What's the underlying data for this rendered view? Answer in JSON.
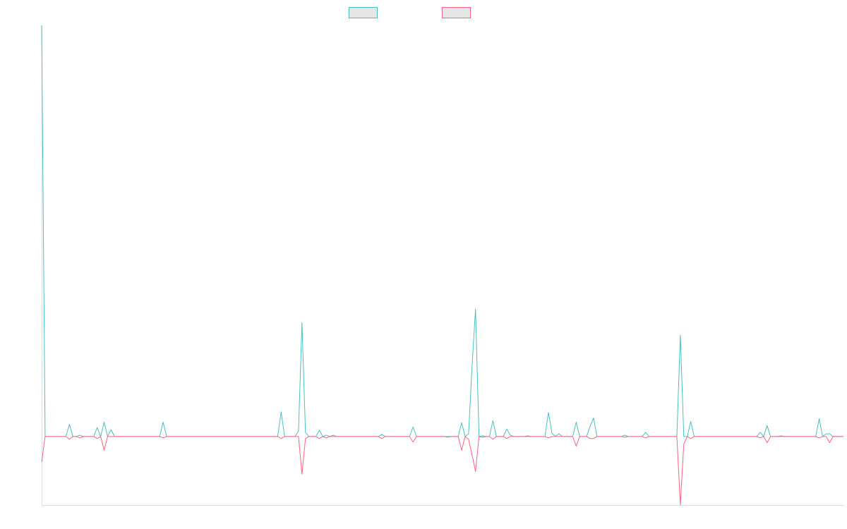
{
  "chart_data": {
    "type": "line",
    "categories": [
      null,
      null,
      null,
      null,
      null,
      null,
      null,
      null,
      null,
      null,
      null,
      null,
      null,
      null,
      null,
      null,
      null,
      null,
      null,
      null,
      null,
      null,
      null,
      null,
      null,
      null,
      null,
      null,
      null,
      null,
      null,
      null,
      null,
      null,
      null,
      null,
      null,
      null,
      null,
      null,
      null,
      null,
      null,
      null,
      null,
      null,
      null,
      null,
      null,
      null,
      null,
      null,
      null,
      null,
      null,
      null,
      null,
      null,
      null,
      null,
      null,
      null,
      null,
      null,
      null,
      null,
      null,
      null,
      null,
      null,
      null,
      null,
      null,
      null,
      null,
      null,
      null,
      null,
      null,
      null,
      null,
      null,
      null,
      null,
      null,
      null,
      null,
      null,
      null,
      null,
      null,
      null,
      null,
      null,
      null,
      null,
      null,
      null,
      null,
      null,
      null,
      null,
      null,
      null,
      null,
      null,
      null,
      null,
      null,
      null,
      null,
      null,
      null,
      null,
      null,
      null,
      null,
      null,
      null,
      null,
      null,
      null,
      null,
      null,
      null,
      null,
      null,
      null,
      null,
      null,
      null,
      null,
      null,
      null,
      null,
      null,
      null,
      null,
      null,
      null,
      null,
      null,
      null,
      null,
      null,
      null,
      null,
      null,
      null,
      null,
      null,
      null,
      null,
      null,
      null,
      null,
      null,
      null,
      null,
      null,
      null,
      null,
      null,
      null,
      null,
      null,
      null,
      null,
      null,
      null,
      null,
      null,
      null,
      null,
      null,
      null,
      null,
      null,
      null,
      null,
      null,
      null,
      null,
      null,
      null,
      null,
      null,
      null,
      null,
      null,
      null,
      null,
      null,
      null,
      null,
      null,
      null,
      null,
      null,
      null,
      null,
      null,
      null,
      null,
      null,
      null,
      null,
      null,
      null,
      null,
      null,
      null,
      null,
      null,
      null,
      null,
      null,
      null,
      null,
      null,
      null,
      null,
      null,
      null,
      null,
      null,
      null,
      null,
      null,
      null,
      null,
      null
    ],
    "series": [
      {
        "color": "#4bc0c0",
        "values": [
          600,
          0,
          0,
          0,
          0,
          0,
          0,
          0,
          18,
          0,
          0,
          2,
          0,
          0,
          0,
          0,
          13,
          0,
          21,
          0,
          10,
          0,
          0,
          0,
          0,
          0,
          0,
          0,
          0,
          0,
          0,
          0,
          0,
          0,
          0,
          21,
          0,
          0,
          0,
          0,
          0,
          0,
          0,
          0,
          0,
          0,
          0,
          0,
          0,
          0,
          0,
          0,
          0,
          0,
          0,
          0,
          0,
          0,
          0,
          0,
          0,
          0,
          0,
          0,
          0,
          0,
          0,
          0,
          0,
          36,
          0,
          0,
          0,
          0,
          8,
          166,
          6,
          0,
          0,
          0,
          9,
          0,
          2,
          0,
          2,
          0,
          0,
          0,
          0,
          0,
          0,
          0,
          0,
          0,
          0,
          0,
          0,
          0,
          3,
          0,
          0,
          0,
          0,
          0,
          0,
          0,
          0,
          14,
          0,
          0,
          0,
          0,
          0,
          0,
          0,
          0,
          0,
          0,
          0,
          0,
          0,
          20,
          0,
          4,
          103,
          186,
          0,
          1,
          0,
          0,
          23,
          0,
          0,
          0,
          11,
          2,
          0,
          0,
          0,
          0,
          1,
          0,
          0,
          0,
          0,
          0,
          35,
          5,
          0,
          4,
          0,
          0,
          0,
          0,
          21,
          0,
          0,
          0,
          15,
          27,
          0,
          0,
          0,
          0,
          0,
          0,
          0,
          0,
          2,
          0,
          0,
          0,
          0,
          0,
          6,
          0,
          0,
          0,
          0,
          0,
          0,
          0,
          0,
          0,
          148,
          0,
          0,
          22,
          0,
          0,
          0,
          0,
          0,
          0,
          0,
          0,
          0,
          0,
          0,
          0,
          0,
          0,
          0,
          0,
          0,
          0,
          0,
          6,
          0,
          16,
          0,
          0,
          0,
          1,
          0,
          0,
          0,
          0,
          0,
          0,
          0,
          0,
          0,
          0,
          26,
          0,
          4,
          4,
          0,
          0,
          0,
          0
        ]
      },
      {
        "color": "#ff6384",
        "values": [
          -37,
          0,
          0,
          0,
          0,
          0,
          0,
          0,
          -4,
          0,
          0,
          -2,
          0,
          0,
          0,
          0,
          -3,
          0,
          -20,
          0,
          0,
          0,
          0,
          0,
          0,
          0,
          0,
          0,
          0,
          0,
          0,
          0,
          0,
          0,
          0,
          -2,
          0,
          0,
          0,
          0,
          0,
          0,
          0,
          0,
          0,
          0,
          0,
          0,
          0,
          0,
          0,
          0,
          0,
          0,
          0,
          0,
          0,
          0,
          0,
          0,
          0,
          0,
          0,
          0,
          0,
          0,
          0,
          0,
          0,
          -3,
          0,
          0,
          0,
          0,
          0,
          -55,
          -3,
          0,
          0,
          0,
          -3,
          0,
          -2,
          0,
          0,
          0,
          0,
          0,
          0,
          0,
          0,
          0,
          0,
          0,
          0,
          0,
          0,
          0,
          -3,
          0,
          0,
          0,
          0,
          0,
          0,
          0,
          0,
          -8,
          0,
          0,
          0,
          0,
          0,
          0,
          0,
          0,
          0,
          -1,
          0,
          0,
          0,
          -20,
          0,
          -4,
          -27,
          -51,
          0,
          -1,
          0,
          0,
          -4,
          0,
          0,
          0,
          -3,
          0,
          0,
          0,
          0,
          0,
          0,
          0,
          0,
          0,
          0,
          0,
          -2,
          0,
          0,
          0,
          0,
          0,
          0,
          0,
          -14,
          0,
          0,
          0,
          -3,
          -3,
          0,
          0,
          0,
          0,
          0,
          0,
          0,
          0,
          -1,
          0,
          0,
          0,
          0,
          0,
          -2,
          0,
          0,
          0,
          0,
          0,
          0,
          0,
          0,
          0,
          -100,
          -11,
          0,
          -3,
          0,
          0,
          0,
          0,
          0,
          0,
          0,
          0,
          0,
          0,
          0,
          0,
          0,
          0,
          0,
          0,
          0,
          0,
          0,
          -2,
          0,
          -9,
          0,
          0,
          0,
          0,
          0,
          0,
          0,
          0,
          0,
          0,
          0,
          0,
          0,
          0,
          -2,
          0,
          0,
          -9,
          0,
          0,
          0,
          0
        ]
      }
    ],
    "ylim": [
      -100,
      600
    ],
    "legend": "top",
    "grid": false
  }
}
